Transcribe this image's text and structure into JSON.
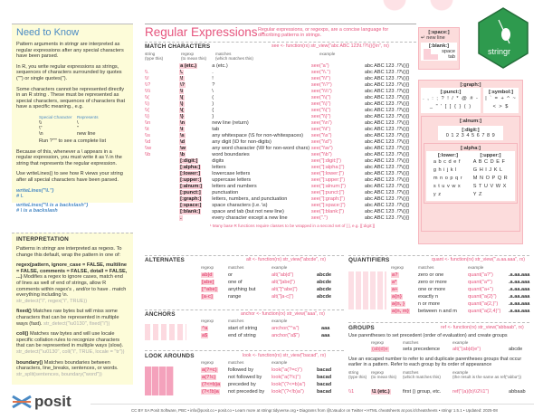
{
  "left": {
    "title": "Need to Know",
    "p1": "Pattern arguments in stringr are interpreted as regular expressions after any special characters have been parsed.",
    "p2": "In R, you write regular expressions as strings, sequences of characters surrounded by quotes (\"\") or single quotes('').",
    "p3": "Some characters cannot be represented directly in an R string . These must be represented as special characters, sequences of characters that have a specific meaning., e.g.",
    "special_header": [
      "Special Character",
      "Represents"
    ],
    "special_rows": [
      [
        "\\\\",
        "\\"
      ],
      [
        "\\\"",
        "\""
      ],
      [
        "\\n",
        "new line"
      ]
    ],
    "run_note": "Run ?\"'\" to see a complete list",
    "p4": "Because of this, whenever a \\ appears in a regular expression, you must write it as \\\\ in the string that represents the regular expression.",
    "p5": "Use writeLines() to see how R views your string after all special characters have been parsed.",
    "code1": "writeLines(\"\\\\.\")",
    "code1_out": "# \\.",
    "code2": "writeLines(\"\\\\ is a backslash\")",
    "code2_out": "# \\ is a backslash",
    "interp_title": "INTERPRETATION",
    "interp_intro": "Patterns in stringr are interpreted as regexs. To change this default, wrap the pattern in one of:",
    "regex_fn": "regex(pattern, ignore_case = FALSE, multiline = FALSE, comments = FALSE, dotall = FALSE, ...)",
    "regex_desc": "Modifies a regex to ignore cases, match end of lines as well of end of strings, allow R comments within regex's , and/or to have . match everything including \\n.",
    "regex_ex": "str_detect(\"I\", regex(\"i\", TRUE))",
    "fixed_fn": "fixed()",
    "fixed_desc": "Matches raw bytes but will miss some characters that can be represented in multiple ways (fast).",
    "fixed_ex": "str_detect(\"\\u0130\", fixed(\"i\"))",
    "coll_fn": "coll()",
    "coll_desc": "Matches raw bytes and will use locale specific collation rules to recognize characters that can be represented in multiple ways (slow).",
    "coll_ex": "str_detect(\"\\u0130\", coll(\"i\", TRUE, locale = \"tr\"))",
    "boundary_fn": "boundary()",
    "boundary_desc": "Matches boundaries between characters, line_breaks, sentences, or words.",
    "boundary_ex": "str_split(sentences, boundary(\"word\"))",
    "logo": "posit"
  },
  "header": {
    "title": "Regular Expressions -",
    "subtitle": "Regular expressions, or regexps, are a concise language for describing patterns in strings."
  },
  "match": {
    "title": "MATCH CHARACTERS",
    "fn": "see <- function(rx) str_view(\"abc ABC 123\\t.!?\\\\(){}\\n\", rx)",
    "headers": [
      "string\n(type this)",
      "regexp\n(to mean this)",
      "matches\n(which matches this)",
      "example"
    ],
    "output": "abc ABC 123  .!?\\(){}",
    "rows": [
      [
        "",
        "a (etc.)",
        "a (etc.)",
        "see(\"a\")"
      ],
      [
        "\\\\.",
        "\\.",
        ".",
        "see(\"\\\\.\")"
      ],
      [
        "\\\\!",
        "\\!",
        "!",
        "see(\"\\\\!\")"
      ],
      [
        "\\\\?",
        "\\?",
        "?",
        "see(\"\\\\?\")"
      ],
      [
        "\\\\\\\\",
        "\\\\",
        "\\",
        "see(\"\\\\\\\\\")"
      ],
      [
        "\\\\(",
        "\\(",
        "(",
        "see(\"\\\\(\")"
      ],
      [
        "\\\\)",
        "\\)",
        ")",
        "see(\"\\\\)\")"
      ],
      [
        "\\\\{",
        "\\{",
        "{",
        "see(\"\\\\{\")"
      ],
      [
        "\\\\}",
        "\\}",
        "}",
        "see(\"\\\\}\")"
      ],
      [
        "\\\\n",
        "\\n",
        "new line (return)",
        "see(\"\\\\n\")"
      ],
      [
        "\\\\t",
        "\\t",
        "tab",
        "see(\"\\\\t\")"
      ],
      [
        "\\\\s",
        "\\s",
        "any whitespace (\\S for non-whitespaces)",
        "see(\"\\\\s\")"
      ],
      [
        "\\\\d",
        "\\d",
        "any digit (\\D for non-digits)",
        "see(\"\\\\d\")"
      ],
      [
        "\\\\w",
        "\\w",
        "any word character (\\W for non-word chars)",
        "see(\"\\\\w\")"
      ],
      [
        "\\\\b",
        "\\b",
        "word boundaries",
        "see(\"\\\\b\")"
      ],
      [
        "",
        "[:digit:]",
        "digits",
        "see(\"[:digit:]\")"
      ],
      [
        "",
        "[:alpha:]",
        "letters",
        "see(\"[:alpha:]\")"
      ],
      [
        "",
        "[:lower:]",
        "lowercase letters",
        "see(\"[:lower:]\")"
      ],
      [
        "",
        "[:upper:]",
        "uppercase letters",
        "see(\"[:upper:]\")"
      ],
      [
        "",
        "[:alnum:]",
        "letters and numbers",
        "see(\"[:alnum:]\")"
      ],
      [
        "",
        "[:punct:]",
        "punctuation",
        "see(\"[:punct:]\")"
      ],
      [
        "",
        "[:graph:]",
        "letters, numbers, and punctuation",
        "see(\"[:graph:]\")"
      ],
      [
        "",
        "[:space:]",
        "space characters (i.e. \\s)",
        "see(\"[:space:]\")"
      ],
      [
        "",
        "[:blank:]",
        "space and tab (but not new line)",
        "see(\"[:blank:]\")"
      ],
      [
        "",
        ".",
        "every character except a new line",
        "see(\".\")"
      ]
    ],
    "footnote": "¹ Many base R functions require classes to be wrapped in a second set of [ ], e.g. [[:digit:]]"
  },
  "alternates": {
    "title": "ALTERNATES",
    "fn": "alt <- function(rx) str_view(\"abcde\", rx)",
    "headers": [
      "regexp",
      "matches",
      "example"
    ],
    "rows": [
      [
        "ab|d",
        "or",
        "alt(\"ab|d\")",
        "abcde"
      ],
      [
        "[abe]",
        "one of",
        "alt(\"[abe]\")",
        "abcde"
      ],
      [
        "[^abe]",
        "anything but",
        "alt(\"[^abe]\")",
        "abcde"
      ],
      [
        "[a-c]",
        "range",
        "alt(\"[a-c]\")",
        "abcde"
      ]
    ]
  },
  "anchors": {
    "title": "ANCHORS",
    "fn": "anchor <- function(rx) str_view(\"aaa\", rx)",
    "headers": [
      "regexp",
      "matches",
      "example"
    ],
    "rows": [
      [
        "^a",
        "start of string",
        "anchor(\"^a\")",
        "aaa"
      ],
      [
        "a$",
        "end of string",
        "anchor(\"a$\")",
        "aaa"
      ]
    ]
  },
  "lookarounds": {
    "title": "LOOK AROUNDS",
    "fn": "look <- function(rx) str_view(\"bacad\", rx)",
    "headers": [
      "regexp",
      "matches",
      "example"
    ],
    "rows": [
      [
        "a(?=c)",
        "followed by",
        "look(\"a(?=c)\")",
        "bacad"
      ],
      [
        "a(?!c)",
        "not followed by",
        "look(\"a(?!c)\")",
        "bacad"
      ],
      [
        "(?<=b)a",
        "preceded by",
        "look(\"(?<=b)a\")",
        "bacad"
      ],
      [
        "(?<!b)a",
        "not preceded by",
        "look(\"(?<!b)a\")",
        "bacad"
      ]
    ]
  },
  "quantifiers": {
    "title": "QUANTIFIERS",
    "fn": "quant <- function(rx) str_view(\".a.aa.aaa\", rx)",
    "headers": [
      "regexp",
      "matches",
      "example"
    ],
    "rows": [
      [
        "a?",
        "zero or one",
        "quant(\"a?\")",
        ".a.aa.aaa"
      ],
      [
        "a*",
        "zero or more",
        "quant(\"a*\")",
        ".a.aa.aaa"
      ],
      [
        "a+",
        "one or more",
        "quant(\"a+\")",
        ".a.aa.aaa"
      ],
      [
        "a{n}",
        "exactly n",
        "quant(\"a{2}\")",
        ".a.aa.aaa"
      ],
      [
        "a{n, }",
        "n or more",
        "quant(\"a{2,}\")",
        ".a.aa.aaa"
      ],
      [
        "a{n, m}",
        "between n and m",
        "quant(\"a{2,4}\")",
        ".a.aa.aaa"
      ]
    ]
  },
  "groups": {
    "title": "GROUPS",
    "fn": "ref <- function(rx) str_view(\"abbaab\", rx)",
    "intro": "Use parentheses to set precedent (order of evaluation) and create groups",
    "headers": [
      "regexp",
      "matches",
      "example"
    ],
    "row": [
      "(ab|d)e",
      "sets precedence",
      "alt(\"(ab|d)e\")",
      "abcde"
    ],
    "intro2": "Use an escaped number to refer to and duplicate parentheses groups that occur earlier in a pattern. Refer to each group by its order of appearance",
    "headers2": [
      "string\n(type this)",
      "regexp\n(to mean this)",
      "matches\n(which matches this)",
      "example\n(the result is the same as ref(\"abba\"))"
    ],
    "row2": [
      "\\\\1",
      "\\1 (etc.)",
      "first () group, etc.",
      "ref(\"(a)(b)\\\\2\\\\1\")",
      "abbaab"
    ]
  },
  "classes": {
    "space": "[:space:]",
    "newline": "new line",
    "blank": "[:blank:]",
    "space_label": "space",
    "tab_label": "tab",
    "graph": "[:graph:]",
    "punct": "[:punct:]",
    "symbol": "[:symbol:]",
    "punct_chars": ". , : ; ? ! / * @ # - _ \" ' [ ] { } ( )",
    "symbol_chars": "| ` = + ^ ~ < > $",
    "alnum": "[:alnum:]",
    "digit": "[:digit:]",
    "digits": "0 1 2 3 4 5 6 7 8 9",
    "alpha": "[:alpha:]",
    "lower": "[:lower:]",
    "upper": "[:upper:]",
    "lower_rows": [
      "a b c d e f",
      "g h i j k l",
      "m n o p q r",
      "s t u v w x",
      "y z"
    ],
    "upper_rows": [
      "A B C D E F",
      "G H I J K L",
      "M N O P Q R",
      "S T U V W X",
      "Y Z"
    ]
  },
  "hex_logo": "stringr",
  "footer": "CC BY SA Posit Software, PBC • info@posit.co • posit.co • Learn more at stringr.tidyverse.org • Diagrams from @LVaudor on Twitter • HTML cheatsheets at pos.it/cheatsheets • stringr 1.5.1 • Updated: 2025-08",
  "colors": {
    "accent": "#e6557e",
    "panel": "#fdfcd9",
    "title_blue": "#4a8ac4",
    "hex": "#2e9a4e"
  }
}
